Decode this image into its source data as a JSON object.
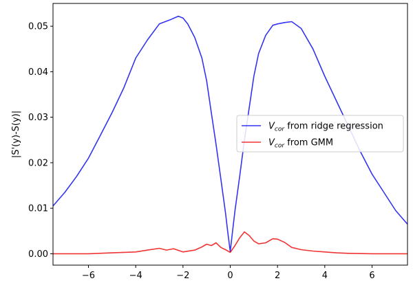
{
  "chart_data": {
    "type": "line",
    "title": "",
    "xlabel": "",
    "ylabel": "|S'(y)-S(y)|",
    "xlim": [
      -7.5,
      7.5
    ],
    "ylim": [
      -0.0025,
      0.055
    ],
    "xticks": [
      -6,
      -4,
      -2,
      0,
      2,
      4,
      6
    ],
    "xtick_labels": [
      "−6",
      "−4",
      "−2",
      "0",
      "2",
      "4",
      "6"
    ],
    "yticks": [
      0.0,
      0.01,
      0.02,
      0.03,
      0.04,
      0.05
    ],
    "ytick_labels": [
      "0.00",
      "0.01",
      "0.02",
      "0.03",
      "0.04",
      "0.05"
    ],
    "grid": false,
    "legend_position": "center-right",
    "series": [
      {
        "name": "V_cor from ridge regression",
        "legend_var": "V",
        "legend_sub": "cor",
        "legend_rest": " from ridge regression",
        "color": "#0000ee",
        "x": [
          -7.5,
          -7.0,
          -6.5,
          -6.0,
          -5.5,
          -5.0,
          -4.5,
          -4.0,
          -3.5,
          -3.0,
          -2.5,
          -2.2,
          -2.0,
          -1.8,
          -1.5,
          -1.2,
          -1.0,
          -0.8,
          -0.6,
          -0.4,
          -0.2,
          -0.1,
          0.0,
          0.1,
          0.2,
          0.4,
          0.6,
          0.8,
          1.0,
          1.2,
          1.5,
          1.8,
          2.0,
          2.3,
          2.6,
          3.0,
          3.5,
          4.0,
          4.5,
          5.0,
          5.5,
          6.0,
          6.5,
          7.0,
          7.5
        ],
        "y": [
          0.0105,
          0.0135,
          0.017,
          0.021,
          0.026,
          0.031,
          0.0365,
          0.043,
          0.047,
          0.0505,
          0.0515,
          0.0522,
          0.0518,
          0.0505,
          0.0475,
          0.043,
          0.038,
          0.031,
          0.024,
          0.0165,
          0.009,
          0.0045,
          0.0005,
          0.005,
          0.0095,
          0.017,
          0.025,
          0.032,
          0.039,
          0.044,
          0.048,
          0.0502,
          0.0505,
          0.0508,
          0.051,
          0.0495,
          0.045,
          0.039,
          0.0335,
          0.028,
          0.0225,
          0.0175,
          0.0135,
          0.0095,
          0.0065
        ]
      },
      {
        "name": "V_cor from GMM",
        "legend_var": "V",
        "legend_sub": "cor",
        "legend_rest": " from GMM",
        "color": "#ee0000",
        "x": [
          -7.5,
          -6.0,
          -5.0,
          -4.5,
          -4.0,
          -3.5,
          -3.0,
          -2.7,
          -2.4,
          -2.0,
          -1.5,
          -1.2,
          -1.0,
          -0.8,
          -0.6,
          -0.4,
          -0.2,
          0.0,
          0.2,
          0.4,
          0.6,
          0.8,
          1.0,
          1.2,
          1.5,
          1.8,
          2.0,
          2.3,
          2.6,
          3.0,
          3.5,
          4.0,
          4.5,
          5.0,
          6.0,
          7.5
        ],
        "y": [
          0.0,
          0.0,
          0.0002,
          0.0003,
          0.0004,
          0.0008,
          0.0012,
          0.0008,
          0.0011,
          0.0004,
          0.0008,
          0.0015,
          0.0021,
          0.0018,
          0.0024,
          0.0014,
          0.0009,
          0.0003,
          0.0018,
          0.0035,
          0.0048,
          0.004,
          0.0028,
          0.0022,
          0.0024,
          0.0033,
          0.0032,
          0.0025,
          0.0014,
          0.0009,
          0.0006,
          0.0004,
          0.0002,
          0.0001,
          0.0,
          0.0
        ]
      }
    ]
  }
}
